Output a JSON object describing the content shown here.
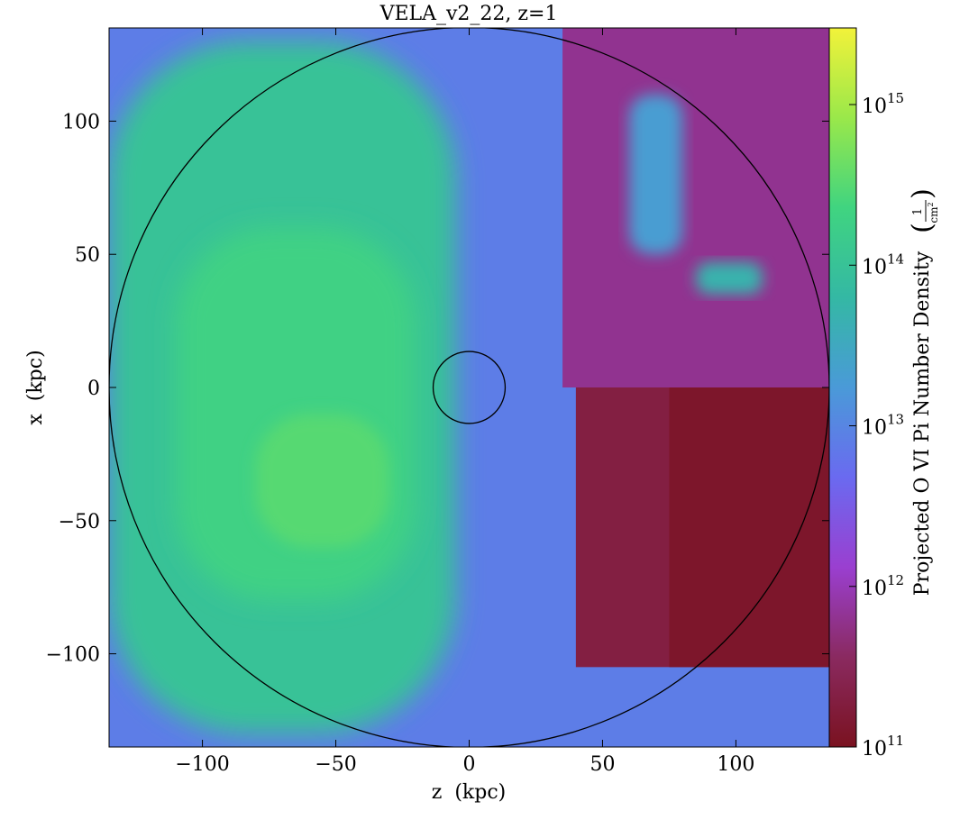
{
  "chart_data": {
    "type": "heatmap",
    "title": "VELA_v2_22, z=1",
    "xlabel": "z  (kpc)",
    "ylabel": "x  (kpc)",
    "xlim": [
      -135,
      135
    ],
    "ylim": [
      -135,
      135
    ],
    "xticks": [
      -100,
      -50,
      0,
      50,
      100
    ],
    "xtick_labels": [
      "−100",
      "−50",
      "0",
      "50",
      "100"
    ],
    "yticks": [
      -100,
      -50,
      0,
      50,
      100
    ],
    "ytick_labels": [
      "−100",
      "−50",
      "0",
      "50",
      "100"
    ],
    "colorbar": {
      "label": "Projected O VI Pi Number Density",
      "unit_numerator": "1",
      "unit_denominator": "cm",
      "unit_exponent": "2",
      "scale": "log",
      "range": [
        100000000000.0,
        3000000000000000.0
      ],
      "ticks": [
        100000000000.0,
        1000000000000.0,
        10000000000000.0,
        100000000000000.0,
        1000000000000000.0
      ],
      "tick_bases": [
        "10",
        "10",
        "10",
        "10",
        "10"
      ],
      "tick_exponents": [
        "11",
        "12",
        "13",
        "14",
        "15"
      ],
      "colors_low_to_high": [
        "#7a1220",
        "#8a2a60",
        "#9a3fd0",
        "#6a6af0",
        "#4a9ad8",
        "#34b8a4",
        "#40d480",
        "#9ae84a",
        "#f2f23a"
      ]
    },
    "circles": [
      {
        "center": [
          0,
          0
        ],
        "radius": 135
      },
      {
        "center": [
          0,
          0
        ],
        "radius": 13.5
      }
    ],
    "regions": [
      {
        "label": "background",
        "z": [
          -135,
          135
        ],
        "x": [
          -135,
          135
        ],
        "log_density": 12.9
      },
      {
        "label": "dense disk region",
        "z": [
          -135,
          -5
        ],
        "x": [
          -130,
          130
        ],
        "log_density": 14.0
      },
      {
        "label": "inner lane",
        "z": [
          -110,
          -20
        ],
        "x": [
          -80,
          60
        ],
        "log_density": 14.3
      },
      {
        "label": "core",
        "z": [
          -80,
          -30
        ],
        "x": [
          -60,
          -10
        ],
        "log_density": 14.5
      },
      {
        "label": "upper-right block",
        "z": [
          35,
          135
        ],
        "x": [
          0,
          135
        ],
        "log_density": 11.8
      },
      {
        "label": "lower-right block",
        "z": [
          40,
          135
        ],
        "x": [
          -105,
          0
        ],
        "log_density": 11.3
      },
      {
        "label": "right edge block",
        "z": [
          75,
          135
        ],
        "x": [
          -105,
          0
        ],
        "log_density": 11.1
      },
      {
        "label": "filament",
        "z": [
          60,
          80
        ],
        "x": [
          50,
          110
        ],
        "log_density": 13.3
      },
      {
        "label": "clump",
        "z": [
          85,
          110
        ],
        "x": [
          35,
          47
        ],
        "log_density": 13.7
      }
    ]
  }
}
